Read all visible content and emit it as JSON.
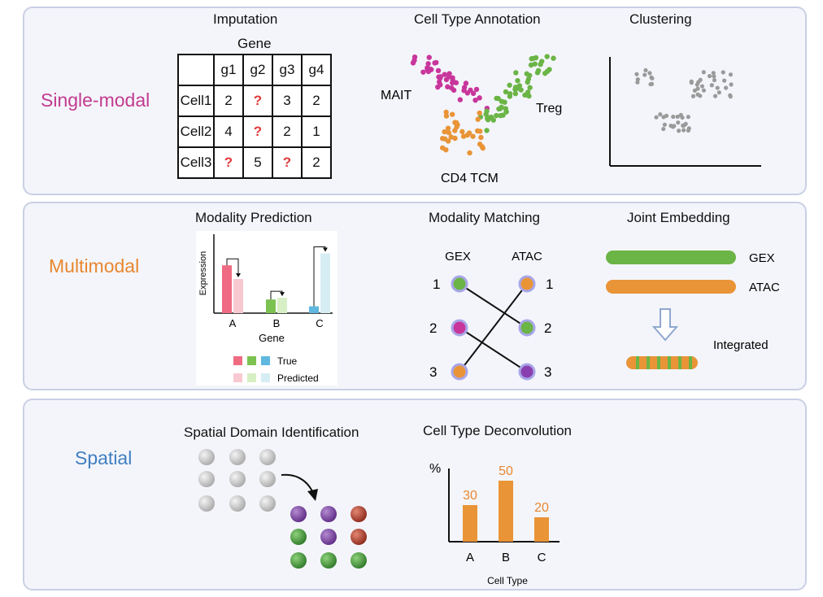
{
  "single_modal": {
    "label": "Single-modal",
    "imputation": {
      "title": "Imputation",
      "gene_label": "Gene",
      "columns": [
        "g1",
        "g2",
        "g3",
        "g4"
      ],
      "rows": [
        {
          "name": "Cell1",
          "values": [
            "2",
            "?",
            "3",
            "2"
          ]
        },
        {
          "name": "Cell2",
          "values": [
            "4",
            "?",
            "2",
            "1"
          ]
        },
        {
          "name": "Cell3",
          "values": [
            "?",
            "5",
            "?",
            "2"
          ]
        }
      ]
    },
    "annotation": {
      "title": "Cell Type Annotation",
      "labels": {
        "mait": "MAIT",
        "treg": "Treg",
        "cd4": "CD4 TCM"
      }
    },
    "clustering": {
      "title": "Clustering"
    }
  },
  "multimodal": {
    "label": "Multimodal",
    "prediction": {
      "title": "Modality Prediction",
      "ylabel": "Expression",
      "xlabel": "Gene",
      "legend_true": "True",
      "legend_predicted": "Predicted"
    },
    "matching": {
      "title": "Modality Matching",
      "left_label": "GEX",
      "right_label": "ATAC",
      "numbers": [
        "1",
        "2",
        "3"
      ]
    },
    "joint": {
      "title": "Joint Embedding",
      "gex_label": "GEX",
      "atac_label": "ATAC",
      "integrated_label": "Integrated"
    }
  },
  "spatial": {
    "label": "Spatial",
    "domain": {
      "title": "Spatial Domain Identification"
    },
    "deconvolution": {
      "title": "Cell Type Deconvolution",
      "ylabel": "%",
      "xlabel": "Cell Type"
    }
  },
  "colors": {
    "single": "#c23a8f",
    "multi": "#e8872e",
    "spatial": "#3f7fc0",
    "pink_cluster": "#c8369b",
    "green_cluster": "#6bb446",
    "orange_cluster": "#e99437",
    "question": "#e23b3b"
  },
  "chart_data": [
    {
      "type": "bar",
      "categories": [
        "A",
        "B",
        "C"
      ],
      "series": [
        {
          "name": "True",
          "values": [
            0.84,
            0.24,
            0.12
          ]
        },
        {
          "name": "Predicted",
          "values": [
            0.6,
            0.27,
            1.05
          ]
        }
      ],
      "xlabel": "Gene",
      "ylabel": "Expression",
      "legend_position": "bottom"
    },
    {
      "type": "bar",
      "categories": [
        "A",
        "B",
        "C"
      ],
      "values": [
        30,
        50,
        20
      ],
      "data_labels": [
        "30",
        "50",
        "20"
      ],
      "xlabel": "Cell Type",
      "ylabel": "%",
      "ylim": [
        0,
        60
      ]
    }
  ]
}
